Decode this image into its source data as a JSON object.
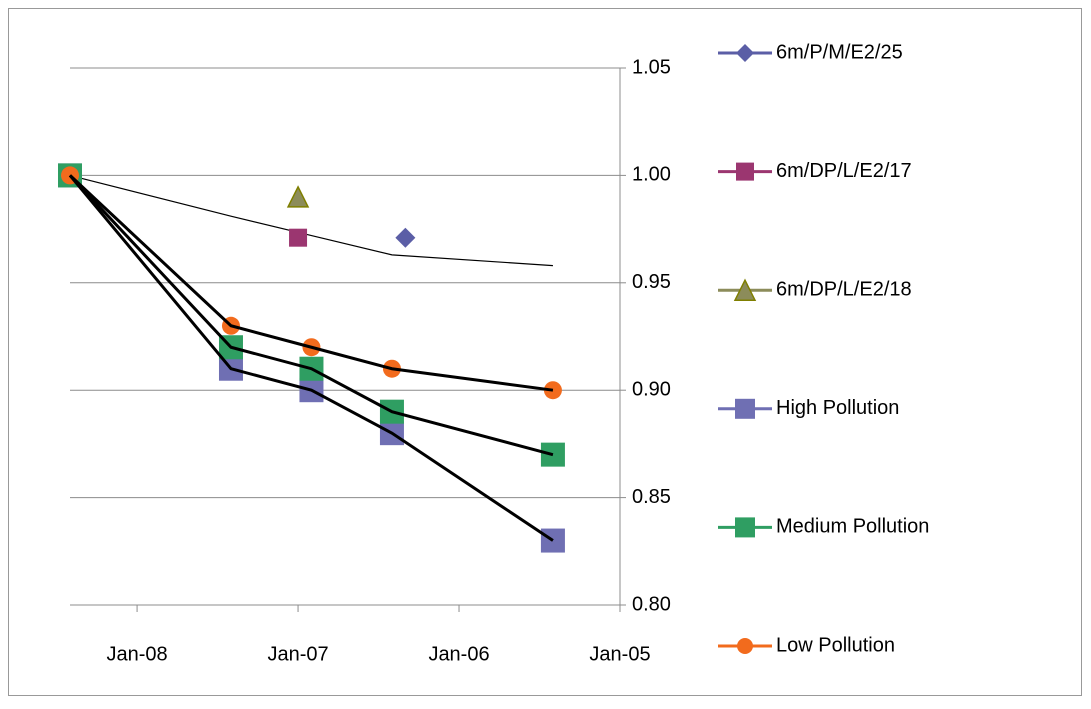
{
  "chart_data": {
    "type": "line",
    "xlim": [
      "2008-06",
      "2005-01"
    ],
    "xticks": [
      {
        "value": "2008-01",
        "label": "Jan-08"
      },
      {
        "value": "2007-01",
        "label": "Jan-07"
      },
      {
        "value": "2006-01",
        "label": "Jan-06"
      },
      {
        "value": "2005-01",
        "label": "Jan-05"
      }
    ],
    "ylim": [
      0.8,
      1.05
    ],
    "yticks": [
      {
        "value": 0.8,
        "label": "0.80"
      },
      {
        "value": 0.85,
        "label": "0.85"
      },
      {
        "value": 0.9,
        "label": "0.90"
      },
      {
        "value": 0.95,
        "label": "0.95"
      },
      {
        "value": 1.0,
        "label": "1.00"
      },
      {
        "value": 1.05,
        "label": "1.05"
      }
    ],
    "grid": true,
    "connector_color": "#000000",
    "series": [
      {
        "name": "6m/P/M/E2/25",
        "color": "#5b5ea6",
        "marker": "diamond",
        "line": false,
        "x": [
          "2006-05"
        ],
        "values": [
          0.971
        ]
      },
      {
        "name": "6m/DP/L/E2/17",
        "color": "#9b3670",
        "marker": "square",
        "line": false,
        "x": [
          "2007-01"
        ],
        "values": [
          0.971
        ]
      },
      {
        "name": "6m/DP/L/E2/18",
        "color": "#8c8c5a",
        "marker": "triangle",
        "line": false,
        "x": [
          "2007-01"
        ],
        "values": [
          0.99
        ]
      },
      {
        "name": "High Pollution",
        "color": "#6f6fb3",
        "marker": "big-square",
        "line": true,
        "x": [
          "2008-06",
          "2007-06",
          "2006-12",
          "2006-06",
          "2005-06"
        ],
        "values": [
          1.0,
          0.91,
          0.9,
          0.88,
          0.83
        ]
      },
      {
        "name": "Medium Pollution",
        "color": "#2f9e62",
        "marker": "big-square",
        "line": true,
        "x": [
          "2008-06",
          "2007-06",
          "2006-12",
          "2006-06",
          "2005-06"
        ],
        "values": [
          1.0,
          0.92,
          0.91,
          0.89,
          0.87
        ]
      },
      {
        "name": "Low Pollution",
        "color": "#f26b1d",
        "marker": "circle",
        "line": true,
        "x": [
          "2008-06",
          "2007-06",
          "2006-12",
          "2006-06",
          "2005-06"
        ],
        "values": [
          1.0,
          0.93,
          0.92,
          0.91,
          0.9
        ]
      }
    ],
    "trendline": {
      "x": [
        "2008-06",
        "2007-06",
        "2006-12",
        "2006-06",
        "2005-06"
      ],
      "values": [
        1.0,
        0.981,
        0.972,
        0.963,
        0.958
      ]
    }
  }
}
